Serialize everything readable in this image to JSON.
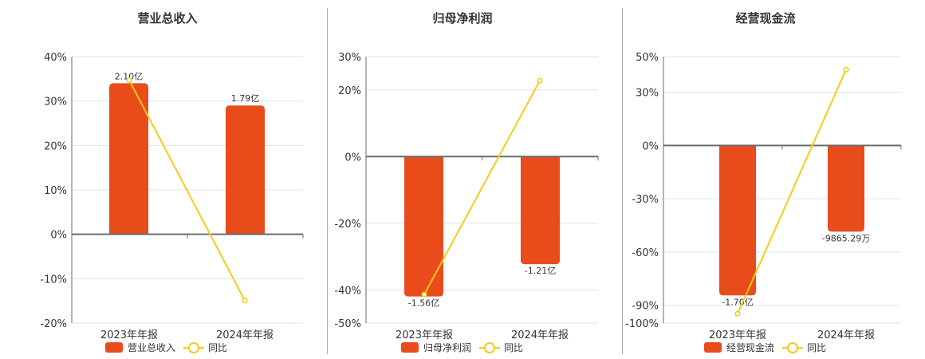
{
  "colors": {
    "bar": "#e84c1b",
    "line": "#f5cc18",
    "grid": "#dde3ee",
    "axis": "#666a70"
  },
  "legend": {
    "yoy_label": "同比"
  },
  "charts": [
    {
      "title": "营业总收入",
      "legend_bar": "营业总收入",
      "x_labels": [
        "2023年年报",
        "2024年年报"
      ],
      "y_ticks": [
        "40%",
        "30%",
        "20%",
        "10%",
        "0%",
        "-10%",
        "-20%"
      ],
      "bar_labels": [
        "2.10亿",
        "1.79亿"
      ]
    },
    {
      "title": "归母净利润",
      "legend_bar": "归母净利润",
      "x_labels": [
        "2023年年报",
        "2024年年报"
      ],
      "y_ticks": [
        "30%",
        "20%",
        "0%",
        "-20%",
        "-40%",
        "-50%"
      ],
      "bar_labels": [
        "-1.56亿",
        "-1.21亿"
      ]
    },
    {
      "title": "经营现金流",
      "legend_bar": "经营现金流",
      "x_labels": [
        "2023年年报",
        "2024年年报"
      ],
      "y_ticks": [
        "50%",
        "30%",
        "0%",
        "-30%",
        "-60%",
        "-90%",
        "-100%"
      ],
      "bar_labels": [
        "-1.70亿",
        "-9865.29万"
      ]
    }
  ],
  "chart_data": [
    {
      "type": "bar",
      "title": "营业总收入",
      "categories": [
        "2023年年报",
        "2024年年报"
      ],
      "series": [
        {
          "name": "营业总收入",
          "type": "bar",
          "values": [
            2.1,
            1.79
          ],
          "unit": "亿",
          "labels": [
            "2.10亿",
            "1.79亿"
          ],
          "bar_height_pct": [
            34,
            29
          ]
        },
        {
          "name": "同比",
          "type": "line",
          "values": [
            34.7,
            -14.9
          ],
          "unit": "%"
        }
      ],
      "ylabel": "",
      "xlabel": "",
      "yticks": [
        40,
        30,
        20,
        10,
        0,
        -10,
        -20
      ],
      "ylim": [
        -20,
        40
      ],
      "grid": true,
      "legend_position": "bottom"
    },
    {
      "type": "bar",
      "title": "归母净利润",
      "categories": [
        "2023年年报",
        "2024年年报"
      ],
      "series": [
        {
          "name": "归母净利润",
          "type": "bar",
          "values": [
            -1.56,
            -1.21
          ],
          "unit": "亿",
          "labels": [
            "-1.56亿",
            "-1.21亿"
          ],
          "bar_height_pct": [
            -42,
            -32.3
          ]
        },
        {
          "name": "同比",
          "type": "line",
          "values": [
            -41.4,
            22.8
          ],
          "unit": "%"
        }
      ],
      "ylabel": "",
      "xlabel": "",
      "yticks": [
        30,
        20,
        0,
        -20,
        -40,
        -50
      ],
      "ylim": [
        -50,
        30
      ],
      "grid": true,
      "legend_position": "bottom"
    },
    {
      "type": "bar",
      "title": "经营现金流",
      "categories": [
        "2023年年报",
        "2024年年报"
      ],
      "series": [
        {
          "name": "经营现金流",
          "type": "bar",
          "values": [
            -1.7,
            -0.986529
          ],
          "unit": "亿",
          "labels": [
            "-1.70亿",
            "-9865.29万"
          ],
          "bar_height_pct": [
            -84.4,
            -48.5
          ]
        },
        {
          "name": "同比",
          "type": "line",
          "values": [
            -94.7,
            42.7
          ],
          "unit": "%"
        }
      ],
      "ylabel": "",
      "xlabel": "",
      "yticks": [
        50,
        30,
        0,
        -30,
        -60,
        -90,
        -100
      ],
      "ylim": [
        -100,
        50
      ],
      "grid": true,
      "legend_position": "bottom"
    }
  ]
}
